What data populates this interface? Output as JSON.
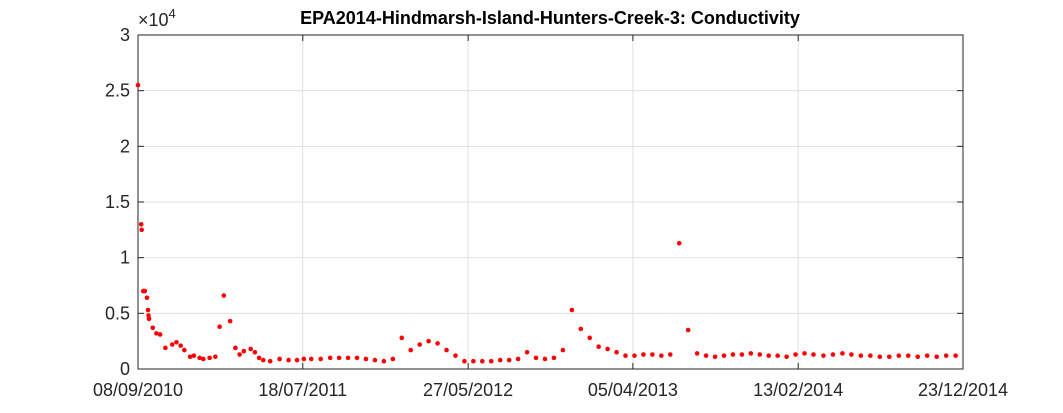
{
  "chart_data": {
    "type": "scatter",
    "title": "EPA2014-Hindmarsh-Island-Hunters-Creek-3: Conductivity",
    "xlabel": "",
    "ylabel": "",
    "y_exponent_label": "×10",
    "y_exponent_power": "4",
    "x_ticks": [
      "08/09/2010",
      "18/07/2011",
      "27/05/2012",
      "05/04/2013",
      "13/02/2014",
      "23/12/2014"
    ],
    "y_ticks": [
      "0",
      "0.5",
      "1",
      "1.5",
      "2",
      "2.5",
      "3"
    ],
    "ylim": [
      0,
      30000
    ],
    "grid": true,
    "marker_color": "#ff0000",
    "series": [
      {
        "x": [
          "2010-09-08",
          "2010-09-14",
          "2010-09-15",
          "2010-09-18",
          "2010-09-21",
          "2010-09-25",
          "2010-09-27",
          "2010-09-28",
          "2010-09-29",
          "2010-10-06",
          "2010-10-13",
          "2010-10-20",
          "2010-10-30",
          "2010-11-12",
          "2010-11-20",
          "2010-11-28",
          "2010-12-05",
          "2010-12-16",
          "2010-12-23",
          "2011-01-03",
          "2011-01-10",
          "2011-01-22",
          "2011-02-02",
          "2011-02-10",
          "2011-02-18",
          "2011-03-02",
          "2011-03-12",
          "2011-03-20",
          "2011-03-28",
          "2011-04-10",
          "2011-04-18",
          "2011-04-26",
          "2011-05-04",
          "2011-05-17",
          "2011-06-04",
          "2011-06-21",
          "2011-07-07",
          "2011-07-20",
          "2011-08-03",
          "2011-08-21",
          "2011-09-08",
          "2011-09-25",
          "2011-10-12",
          "2011-10-29",
          "2011-11-15",
          "2011-12-02",
          "2011-12-19",
          "2012-01-05",
          "2012-01-22",
          "2012-02-08",
          "2012-02-25",
          "2012-03-13",
          "2012-03-30",
          "2012-04-16",
          "2012-05-03",
          "2012-05-20",
          "2012-06-06",
          "2012-06-23",
          "2012-07-10",
          "2012-07-27",
          "2012-08-13",
          "2012-08-30",
          "2012-09-16",
          "2012-10-03",
          "2012-10-20",
          "2012-11-06",
          "2012-11-23",
          "2012-12-10",
          "2012-12-27",
          "2013-01-13",
          "2013-01-30",
          "2013-02-16",
          "2013-03-05",
          "2013-03-22",
          "2013-04-08",
          "2013-04-25",
          "2013-05-12",
          "2013-05-29",
          "2013-06-15",
          "2013-07-02",
          "2013-07-19",
          "2013-08-05",
          "2013-08-22",
          "2013-09-08",
          "2013-09-25",
          "2013-10-12",
          "2013-10-29",
          "2013-11-15",
          "2013-12-02",
          "2013-12-19",
          "2014-01-05",
          "2014-01-22",
          "2014-02-08",
          "2014-02-25",
          "2014-03-14",
          "2014-04-02",
          "2014-04-20",
          "2014-05-08",
          "2014-05-25",
          "2014-06-12",
          "2014-06-30",
          "2014-07-18",
          "2014-08-05",
          "2014-08-23",
          "2014-09-10",
          "2014-09-28",
          "2014-10-16",
          "2014-11-03",
          "2014-11-21",
          "2014-12-09"
        ],
        "y": [
          25500,
          13000,
          12500,
          7000,
          7000,
          6400,
          5300,
          4800,
          4500,
          3700,
          3200,
          3100,
          1900,
          2200,
          2400,
          2100,
          1700,
          1100,
          1200,
          1000,
          900,
          1000,
          1100,
          3800,
          6600,
          4300,
          1900,
          1300,
          1600,
          1800,
          1500,
          1000,
          800,
          700,
          900,
          800,
          800,
          900,
          900,
          900,
          1000,
          1000,
          1000,
          1000,
          900,
          800,
          700,
          900,
          2800,
          1700,
          2200,
          2500,
          2300,
          1700,
          1200,
          700,
          700,
          700,
          700,
          800,
          800,
          900,
          1500,
          1000,
          900,
          1000,
          1700,
          5300,
          3600,
          2800,
          2000,
          1800,
          1500,
          1200,
          1200,
          1300,
          1300,
          1200,
          1300,
          11300,
          3500,
          1400,
          1200,
          1100,
          1200,
          1300,
          1300,
          1400,
          1300,
          1200,
          1200,
          1100,
          1300,
          1400,
          1300,
          1200,
          1300,
          1400,
          1300,
          1200,
          1200,
          1100,
          1100,
          1200,
          1200,
          1100,
          1200,
          1100,
          1200,
          1200
        ]
      }
    ]
  }
}
